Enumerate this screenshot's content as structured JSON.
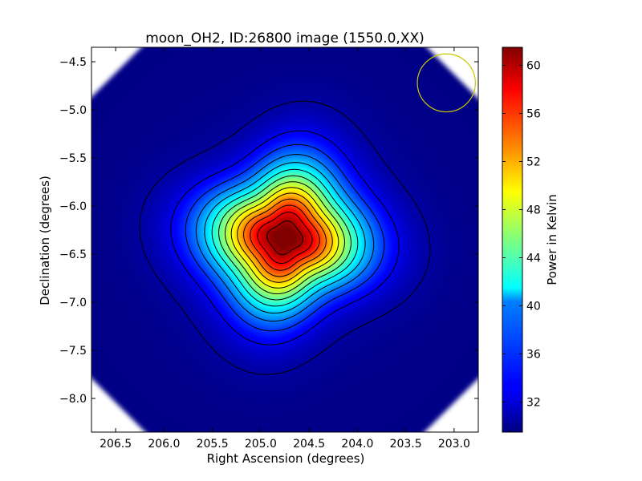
{
  "chart_data": {
    "type": "heatmap",
    "title": "moon_OH2, ID:26800 image (1550.0,XX)",
    "xlabel": "Right Ascension (degrees)",
    "ylabel": "Declination (degrees)",
    "xlim": [
      206.75,
      202.75
    ],
    "ylim": [
      -8.35,
      -4.35
    ],
    "x_ticks": [
      "206.5",
      "206.0",
      "205.5",
      "205.0",
      "204.5",
      "204.0",
      "203.5",
      "203.0"
    ],
    "y_ticks": [
      "-4.5",
      "-5.0",
      "-5.5",
      "-6.0",
      "-6.5",
      "-7.0",
      "-7.5",
      "-8.0"
    ],
    "colorbar": {
      "label": "Power in Kelvin",
      "range": [
        29.5,
        61.5
      ],
      "ticks": [
        "32",
        "36",
        "40",
        "44",
        "48",
        "52",
        "56",
        "60"
      ],
      "colormap": "jet"
    },
    "peak": {
      "ra": 204.75,
      "dec": -6.33,
      "value": 61.5
    },
    "background_value": 29.5,
    "contour_count": 14,
    "beam_circle": {
      "ra": 203.08,
      "dec": -4.72,
      "radius_deg": 0.3,
      "color": "#c8c800"
    }
  },
  "colors": {
    "frame": "#000000",
    "contour": "#000000",
    "masked_region": "#ffffff"
  }
}
